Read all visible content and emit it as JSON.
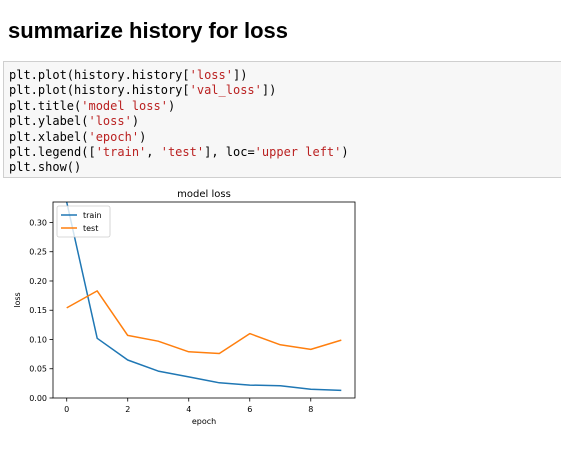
{
  "heading": "summarize history for loss",
  "code_lines": [
    [
      "plt.plot(history.history[",
      "'loss'",
      "])"
    ],
    [
      "plt.plot(history.history[",
      "'val_loss'",
      "])"
    ],
    [
      "plt.title(",
      "'model loss'",
      ")"
    ],
    [
      "plt.ylabel(",
      "'loss'",
      ")"
    ],
    [
      "plt.xlabel(",
      "'epoch'",
      ")"
    ],
    [
      "plt.legend([",
      "'train'",
      ", ",
      "'test'",
      "], loc=",
      "'upper left'",
      ")"
    ],
    [
      "plt.show()"
    ]
  ],
  "colors": {
    "train": "#1f77b4",
    "test": "#ff7f0e",
    "string": "#ba2121"
  },
  "chart_data": {
    "type": "line",
    "title": "model loss",
    "xlabel": "epoch",
    "ylabel": "loss",
    "x": [
      0,
      1,
      2,
      3,
      4,
      5,
      6,
      7,
      8,
      9
    ],
    "xlim": [
      -0.45,
      9.45
    ],
    "ylim": [
      0,
      0.335
    ],
    "xticks": [
      0,
      2,
      4,
      6,
      8
    ],
    "yticks": [
      0.0,
      0.05,
      0.1,
      0.15,
      0.2,
      0.25,
      0.3
    ],
    "ytick_labels": [
      "0.00",
      "0.05",
      "0.10",
      "0.15",
      "0.20",
      "0.25",
      "0.30"
    ],
    "legend_position": "upper left",
    "series": [
      {
        "name": "train",
        "color": "#1f77b4",
        "values": [
          0.335,
          0.102,
          0.065,
          0.046,
          0.036,
          0.026,
          0.022,
          0.021,
          0.015,
          0.013
        ]
      },
      {
        "name": "test",
        "color": "#ff7f0e",
        "values": [
          0.154,
          0.183,
          0.107,
          0.097,
          0.079,
          0.076,
          0.11,
          0.091,
          0.083,
          0.099
        ]
      }
    ]
  }
}
